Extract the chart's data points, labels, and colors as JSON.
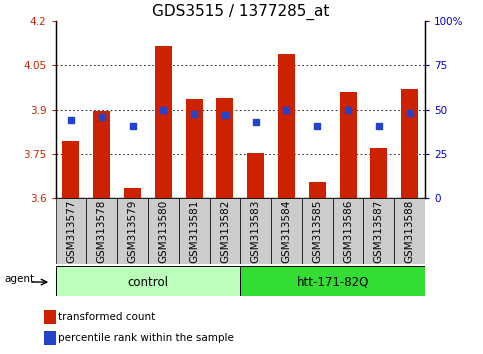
{
  "title": "GDS3515 / 1377285_at",
  "categories": [
    "GSM313577",
    "GSM313578",
    "GSM313579",
    "GSM313580",
    "GSM313581",
    "GSM313582",
    "GSM313583",
    "GSM313584",
    "GSM313585",
    "GSM313586",
    "GSM313587",
    "GSM313588"
  ],
  "bar_values": [
    3.795,
    3.895,
    3.635,
    4.115,
    3.935,
    3.94,
    3.755,
    4.09,
    3.655,
    3.96,
    3.77,
    3.97
  ],
  "dot_values": [
    3.865,
    3.875,
    3.845,
    3.9,
    3.885,
    3.882,
    3.858,
    3.9,
    3.845,
    3.9,
    3.845,
    3.89
  ],
  "ymin": 3.6,
  "ymax": 4.2,
  "yticks": [
    3.6,
    3.75,
    3.9,
    4.05,
    4.2
  ],
  "ytick_labels": [
    "3.6",
    "3.75",
    "3.9",
    "4.05",
    "4.2"
  ],
  "y2ticks": [
    0,
    25,
    50,
    75,
    100
  ],
  "y2tick_labels": [
    "0",
    "25",
    "50",
    "75",
    "100%"
  ],
  "grid_values": [
    3.75,
    3.9,
    4.05
  ],
  "bar_color": "#cc2200",
  "dot_color": "#2244cc",
  "bar_bottom": 3.6,
  "group1_label": "control",
  "group2_label": "htt-171-82Q",
  "group1_count": 6,
  "group2_count": 6,
  "agent_label": "agent",
  "legend_bar_label": "transformed count",
  "legend_dot_label": "percentile rank within the sample",
  "group_bg1": "#bbffbb",
  "group_bg2": "#33dd33",
  "tick_bg": "#cccccc",
  "xlabel_color": "#cc2200",
  "y2label_color": "#0000cc",
  "title_fontsize": 11,
  "tick_fontsize": 7.5,
  "group_label_fontsize": 8.5
}
